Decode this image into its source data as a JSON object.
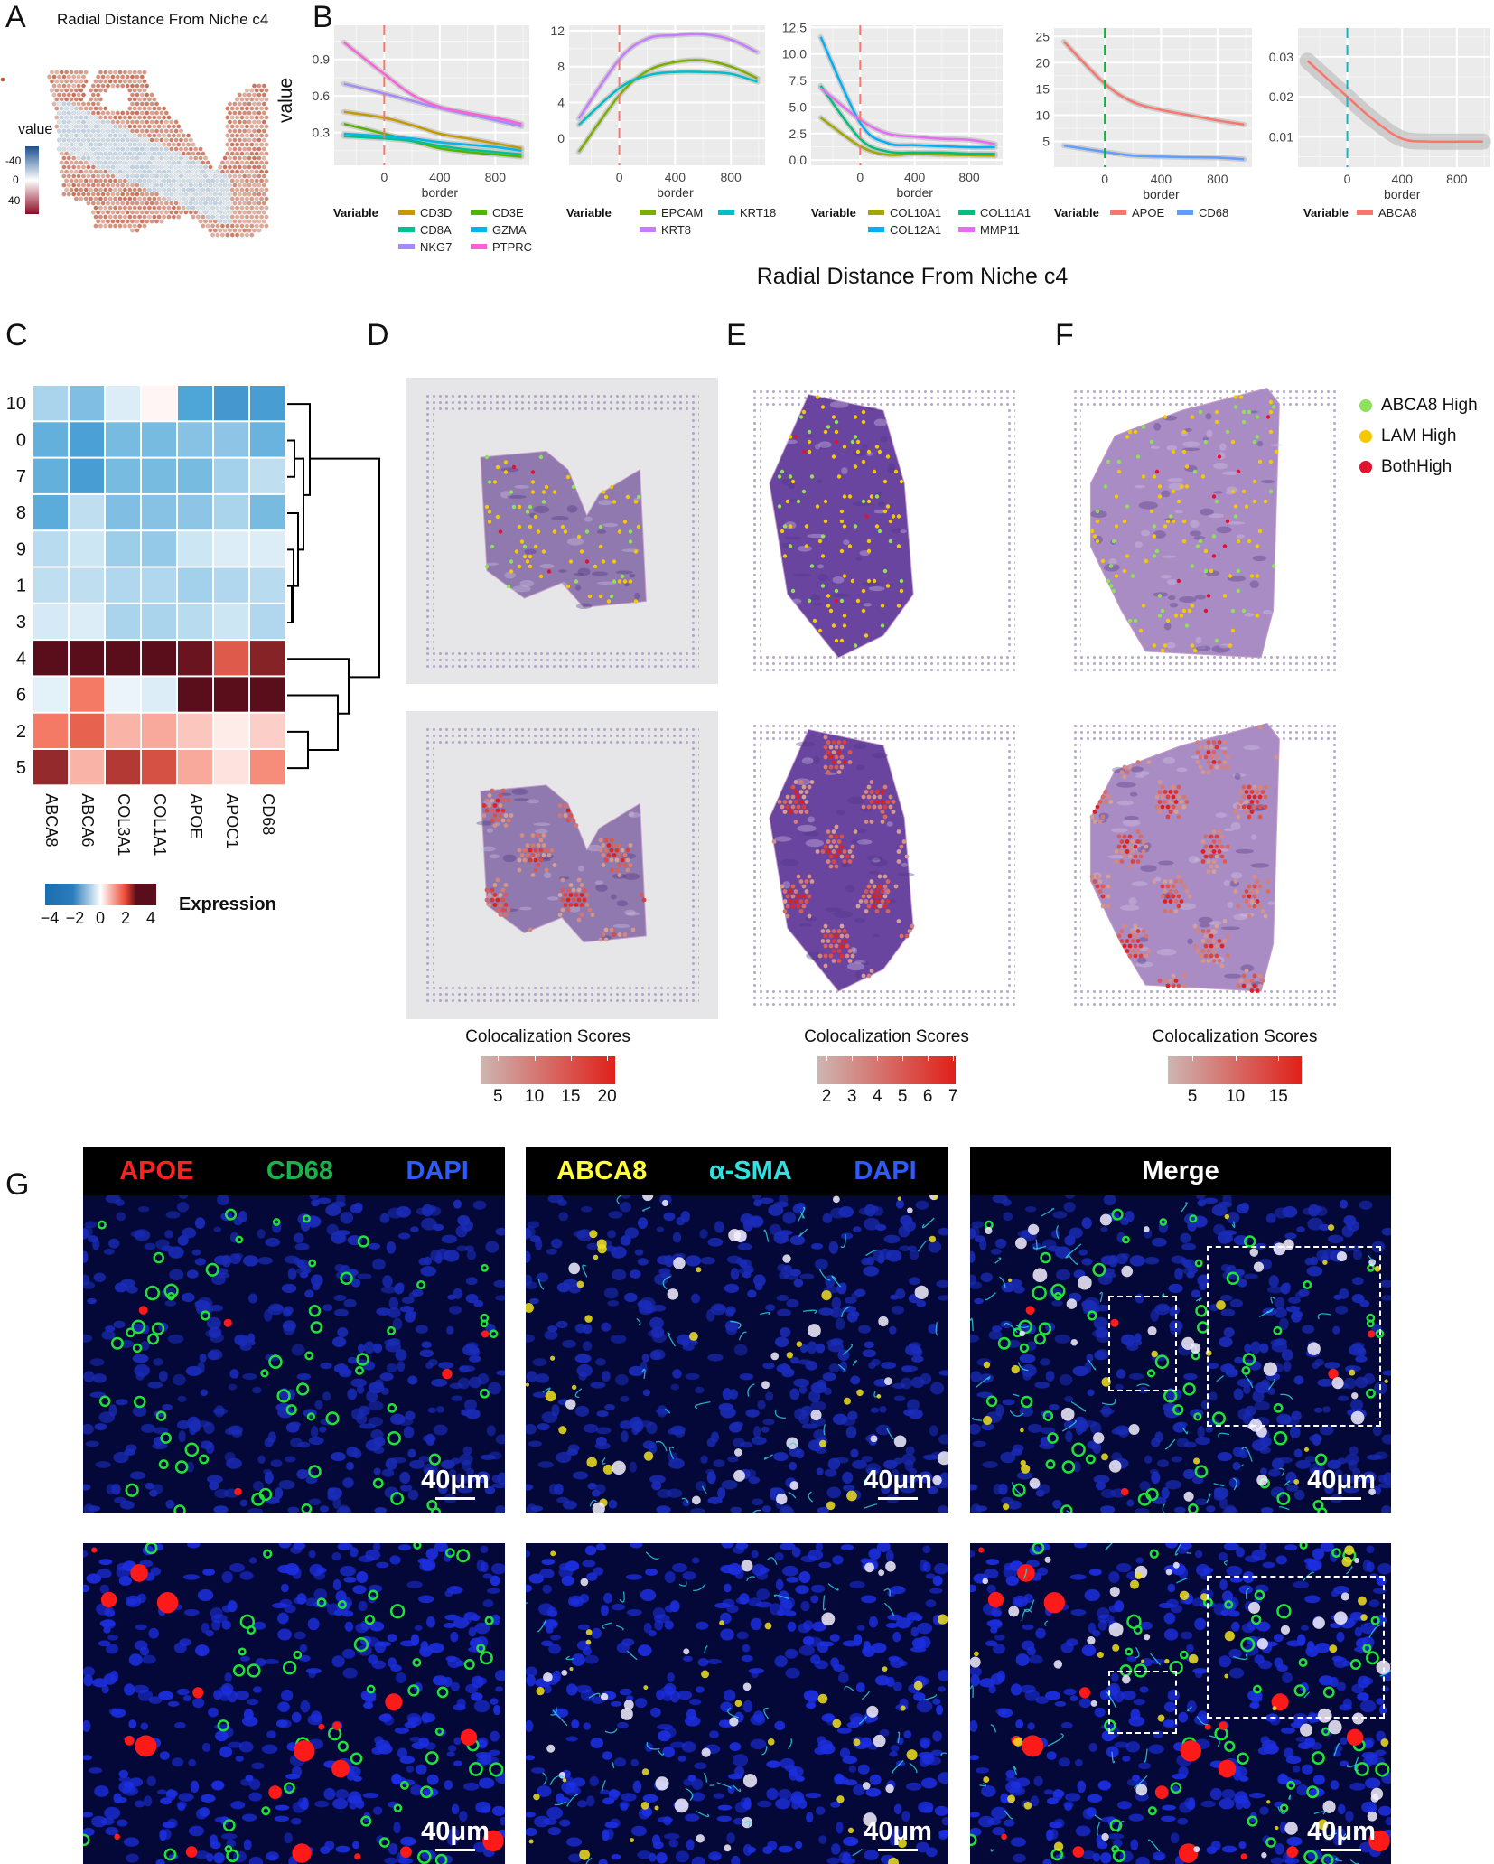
{
  "panel_labels": {
    "a": "A",
    "b": "B",
    "c": "C",
    "d": "D",
    "e": "E",
    "f": "F",
    "g": "G"
  },
  "panel_a": {
    "title": "Radial Distance From Niche c4",
    "legend_title": "value",
    "legend_ticks": [
      "-40",
      "0",
      "40"
    ],
    "colors": {
      "low": "#1a4f8f",
      "mid": "#ffffff",
      "high": "#8b0a22"
    }
  },
  "panel_b": {
    "title": "Radial Distance From Niche c4",
    "ylabel": "value",
    "xlabel": "border",
    "legend_title": "Variable"
  },
  "chart_data": [
    {
      "type": "line",
      "xlabel": "border",
      "ylabel": "value",
      "xlim": [
        -360,
        1045
      ],
      "xticks": [
        "0",
        "400",
        "800"
      ],
      "ylim": [
        0.03,
        1.18
      ],
      "yticks": [
        "0.3",
        "0.6",
        "0.9"
      ],
      "grid": true,
      "border_line": {
        "x": 0,
        "color": "#f8766d"
      },
      "legend_title": "Variable",
      "legend": "bottom",
      "x": [
        -290,
        0,
        200,
        400,
        600,
        800,
        990
      ],
      "series": [
        {
          "name": "CD3D",
          "color": "#c49a00",
          "values": [
            0.47,
            0.42,
            0.36,
            0.29,
            0.25,
            0.21,
            0.17
          ]
        },
        {
          "name": "CD3E",
          "color": "#53b400",
          "values": [
            0.37,
            0.29,
            0.23,
            0.17,
            0.14,
            0.12,
            0.1
          ]
        },
        {
          "name": "CD8A",
          "color": "#00c094",
          "values": [
            0.27,
            0.25,
            0.23,
            0.19,
            0.16,
            0.14,
            0.12
          ]
        },
        {
          "name": "GZMA",
          "color": "#00b6eb",
          "values": [
            0.29,
            0.27,
            0.25,
            0.22,
            0.2,
            0.18,
            0.15
          ]
        },
        {
          "name": "NKG7",
          "color": "#a58aff",
          "values": [
            0.7,
            0.62,
            0.56,
            0.5,
            0.45,
            0.4,
            0.35
          ]
        },
        {
          "name": "PTPRC",
          "color": "#fb61d7",
          "values": [
            1.04,
            0.78,
            0.61,
            0.51,
            0.46,
            0.42,
            0.37
          ]
        }
      ]
    },
    {
      "type": "line",
      "xlabel": "border",
      "xlim": [
        -360,
        1045
      ],
      "xticks": [
        "0",
        "400",
        "800"
      ],
      "ylim": [
        -3.0,
        12.6
      ],
      "yticks": [
        "0",
        "4",
        "8",
        "12"
      ],
      "grid": true,
      "border_line": {
        "x": 0,
        "color": "#f8766d"
      },
      "legend_title": "Variable",
      "legend": "bottom",
      "x": [
        -290,
        0,
        200,
        400,
        600,
        800,
        990
      ],
      "series": [
        {
          "name": "EPCAM",
          "color": "#7cae00",
          "values": [
            -1.5,
            4.8,
            7.5,
            8.5,
            8.7,
            8.0,
            6.7
          ]
        },
        {
          "name": "KRT18",
          "color": "#00bfc4",
          "values": [
            1.5,
            5.6,
            7.0,
            7.4,
            7.4,
            7.2,
            6.3
          ]
        },
        {
          "name": "KRT8",
          "color": "#c77cff",
          "values": [
            2.2,
            8.8,
            11.1,
            11.5,
            11.6,
            11.0,
            9.6
          ]
        }
      ]
    },
    {
      "type": "line",
      "xlabel": "border",
      "xlim": [
        -360,
        1045
      ],
      "xticks": [
        "0",
        "400",
        "800"
      ],
      "ylim": [
        -0.5,
        12.7
      ],
      "yticks": [
        "0.0",
        "2.5",
        "5.0",
        "7.5",
        "10.0",
        "12.5"
      ],
      "grid": true,
      "border_line": {
        "x": 0,
        "color": "#f8766d"
      },
      "legend_title": "Variable",
      "legend": "bottom",
      "x": [
        -290,
        0,
        200,
        400,
        600,
        800,
        990
      ],
      "series": [
        {
          "name": "COL10A1",
          "color": "#a3a500",
          "values": [
            4.0,
            1.3,
            0.5,
            0.6,
            0.5,
            0.45,
            0.4
          ]
        },
        {
          "name": "COL11A1",
          "color": "#00bf7d",
          "values": [
            7.0,
            2.0,
            0.8,
            0.7,
            0.7,
            0.6,
            0.6
          ]
        },
        {
          "name": "COL12A1",
          "color": "#00b0f6",
          "values": [
            11.6,
            3.5,
            1.6,
            1.4,
            1.3,
            1.2,
            1.2
          ]
        },
        {
          "name": "MMP11",
          "color": "#e76bf3",
          "values": [
            6.8,
            3.8,
            2.5,
            2.2,
            2.0,
            1.9,
            1.5
          ]
        }
      ]
    },
    {
      "type": "line",
      "xlabel": "border",
      "xlim": [
        -360,
        1045
      ],
      "xticks": [
        "0",
        "400",
        "800"
      ],
      "ylim": [
        0.1,
        26.6
      ],
      "yticks": [
        "5",
        "10",
        "15",
        "20",
        "25"
      ],
      "grid": true,
      "border_line": {
        "x": 0,
        "color": "#00ba38"
      },
      "legend_title": "Variable",
      "legend": "bottom",
      "x": [
        -290,
        0,
        200,
        400,
        600,
        800,
        990
      ],
      "series": [
        {
          "name": "APOE",
          "color": "#f8766d",
          "values": [
            24.0,
            16.0,
            12.5,
            11.0,
            10.0,
            9.0,
            8.2
          ]
        },
        {
          "name": "CD68",
          "color": "#619cff",
          "values": [
            4.2,
            3.0,
            2.3,
            2.1,
            2.0,
            1.9,
            1.6
          ]
        }
      ]
    },
    {
      "type": "line",
      "xlabel": "border",
      "xlim": [
        -360,
        1045
      ],
      "xticks": [
        "0",
        "400",
        "800"
      ],
      "ylim": [
        0.0024,
        0.0372
      ],
      "yticks": [
        "0.01",
        "0.02",
        "0.03"
      ],
      "grid": true,
      "border_line": {
        "x": 0,
        "color": "#00bfc4"
      },
      "legend_title": "Variable",
      "legend": "bottom",
      "x": [
        -290,
        0,
        200,
        400,
        600,
        800,
        990
      ],
      "series": [
        {
          "name": "ABCA8",
          "color": "#f8766d",
          "values": [
            0.029,
            0.02,
            0.014,
            0.0095,
            0.0088,
            0.0088,
            0.0088
          ]
        }
      ]
    },
    {
      "type": "heatmap",
      "legend_title": "Expression",
      "scale": [
        -4,
        4
      ],
      "legend_ticks": [
        "−4",
        "−2",
        "0",
        "2",
        "4"
      ],
      "rows": [
        "10",
        "0",
        "7",
        "8",
        "9",
        "1",
        "3",
        "4",
        "6",
        "2",
        "5"
      ],
      "cols": [
        "ABCA8",
        "ABCA6",
        "COL3A1",
        "COL1A1",
        "APOE",
        "APOC1",
        "CD68"
      ],
      "values": [
        [
          -1.2,
          -1.8,
          -0.5,
          0.1,
          -2.5,
          -2.8,
          -2.7
        ],
        [
          -2.2,
          -2.6,
          -1.9,
          -1.9,
          -1.7,
          -1.6,
          -2.1
        ],
        [
          -2.2,
          -2.7,
          -1.9,
          -1.9,
          -1.9,
          -1.3,
          -0.9
        ],
        [
          -2.3,
          -0.9,
          -1.8,
          -1.7,
          -1.6,
          -1.2,
          -1.9
        ],
        [
          -1.0,
          -0.7,
          -1.4,
          -1.5,
          -0.7,
          -0.5,
          -0.5
        ],
        [
          -0.9,
          -0.9,
          -1.1,
          -1.1,
          -1.3,
          -1.1,
          -1.0
        ],
        [
          -0.6,
          -0.5,
          -1.2,
          -1.2,
          -1.0,
          -0.7,
          -1.1
        ],
        [
          4.5,
          4.5,
          4.5,
          4.5,
          3.8,
          2.0,
          3.4
        ],
        [
          -0.4,
          1.4,
          -0.3,
          -0.5,
          4.2,
          4.6,
          4.5
        ],
        [
          1.4,
          1.8,
          0.8,
          0.9,
          0.6,
          0.2,
          0.5
        ],
        [
          3.2,
          0.8,
          2.8,
          2.2,
          0.9,
          0.3,
          1.2
        ]
      ]
    }
  ],
  "panel_def": {
    "legend": [
      {
        "label": "ABCA8 High",
        "color": "#8fe05a"
      },
      {
        "label": "LAM High",
        "color": "#f5c800"
      },
      {
        "label": "BothHigh",
        "color": "#e0122f"
      }
    ],
    "colorbars": [
      {
        "title": "Colocalization Scores",
        "ticks": [
          "5",
          "10",
          "15",
          "20"
        ],
        "range": [
          2.6,
          21.1
        ]
      },
      {
        "title": "Colocalization Scores",
        "ticks": [
          "2",
          "3",
          "4",
          "5",
          "6",
          "7"
        ],
        "range": [
          1.64,
          7.1
        ]
      },
      {
        "title": "Colocalization Scores",
        "ticks": [
          "5",
          "10",
          "15"
        ],
        "range": [
          2.16,
          17.7
        ]
      }
    ],
    "colorbar_colors": {
      "low": "#cdb6b2",
      "high": "#e0201a"
    }
  },
  "panel_g": {
    "headers": [
      [
        {
          "text": "APOE",
          "color": "#ff2020"
        },
        {
          "text": "CD68",
          "color": "#19b34a"
        },
        {
          "text": "DAPI",
          "color": "#2d5bff"
        }
      ],
      [
        {
          "text": "ABCA8",
          "color": "#ffff33"
        },
        {
          "text": "α-SMA",
          "color": "#33e0e0"
        },
        {
          "text": "DAPI",
          "color": "#2d5bff"
        }
      ],
      [
        {
          "text": "Merge",
          "color": "#ffffff"
        }
      ]
    ],
    "scale_bar": "40μm"
  }
}
